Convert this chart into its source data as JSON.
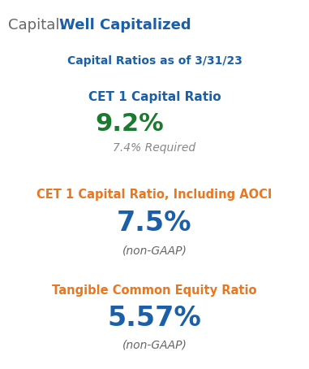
{
  "background_color": "#ffffff",
  "title_prefix": "Capital: ",
  "title_prefix_color": "#666666",
  "title_bold": "Well Capitalized",
  "title_bold_color": "#1a5fa8",
  "subtitle": "Capital Ratios as of 3/31/23",
  "subtitle_color": "#1a5fa8",
  "section1_label": "CET 1 Capital Ratio",
  "section1_label_color": "#1a5fa8",
  "section1_highlight_color": "#ffff00",
  "section1_value": "9.2%",
  "section1_value_color": "#1a7a2e",
  "section1_note": "7.4% Required",
  "section1_note_color": "#888888",
  "section2_label": "CET 1 Capital Ratio, Including AOCI",
  "section2_label_color": "#e87722",
  "section2_value": "7.5%",
  "section2_value_color": "#1a5fa8",
  "section2_note": "(non-GAAP)",
  "section2_note_color": "#666666",
  "section3_label": "Tangible Common Equity Ratio",
  "section3_label_color": "#e87722",
  "section3_value": "5.57%",
  "section3_value_color": "#1a5fa8",
  "section3_note": "(non-GAAP)",
  "section3_note_color": "#666666",
  "fig_width": 3.81,
  "fig_height": 4.54,
  "dpi": 100
}
